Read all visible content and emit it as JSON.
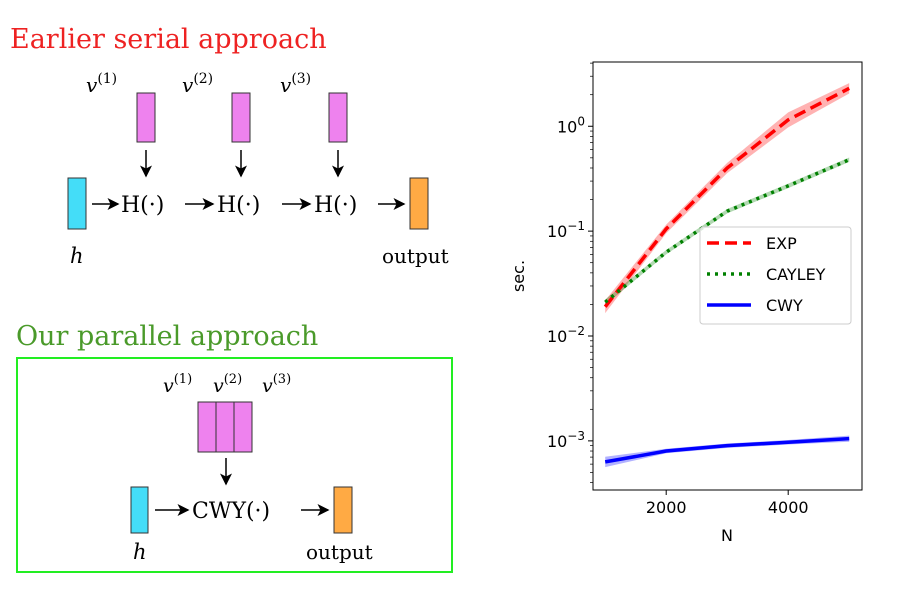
{
  "diagram": {
    "serial_title": "Earlier serial approach",
    "parallel_title": "Our parallel approach",
    "v_labels": [
      "v(1)",
      "v(2)",
      "v(3)"
    ],
    "v_base": "v",
    "v_sups": [
      "(1)",
      "(2)",
      "(3)"
    ],
    "h_op": "H(·)",
    "cwy_op": "CWY(·)",
    "input_label": "h",
    "output_label": "output",
    "colors": {
      "serial_title": "#ee2222",
      "parallel_title": "#4a9a2a",
      "box_border": "#22ee22",
      "vector": "#ee82ee",
      "input": "#44ddf8",
      "output": "#ffaa44"
    }
  },
  "chart_data": {
    "type": "line",
    "title": "",
    "xlabel": "N",
    "ylabel": "sec.",
    "xscale": "linear",
    "yscale": "log",
    "xlim": [
      800,
      5210
    ],
    "ylim": [
      0.00034,
      4.1
    ],
    "xticks": [
      2000,
      4000
    ],
    "xtick_labels": [
      "2000",
      "4000"
    ],
    "yticks": [
      1,
      0.1,
      0.01,
      0.001
    ],
    "ytick_bases": [
      "10",
      "10",
      "10",
      "10"
    ],
    "ytick_exps": [
      "0",
      "−1",
      "−2",
      "−3"
    ],
    "legend_position": "center-right",
    "x": [
      1000,
      2000,
      3000,
      4000,
      5000
    ],
    "series": [
      {
        "name": "EXP",
        "color": "#ff0000",
        "style": "dashed",
        "values": [
          0.019,
          0.105,
          0.4,
          1.15,
          2.3
        ],
        "band": [
          0.15,
          0.1,
          0.12,
          0.18,
          0.12
        ]
      },
      {
        "name": "CAYLEY",
        "color": "#008000",
        "style": "dotted",
        "values": [
          0.021,
          0.063,
          0.155,
          0.27,
          0.48
        ],
        "band": [
          0.06,
          0.05,
          0.05,
          0.05,
          0.05
        ]
      },
      {
        "name": "CWY",
        "color": "#0000ff",
        "style": "solid",
        "values": [
          0.00063,
          0.0008,
          0.0009,
          0.00097,
          0.00105
        ],
        "band": [
          0.12,
          0.05,
          0.05,
          0.05,
          0.07
        ]
      }
    ]
  }
}
